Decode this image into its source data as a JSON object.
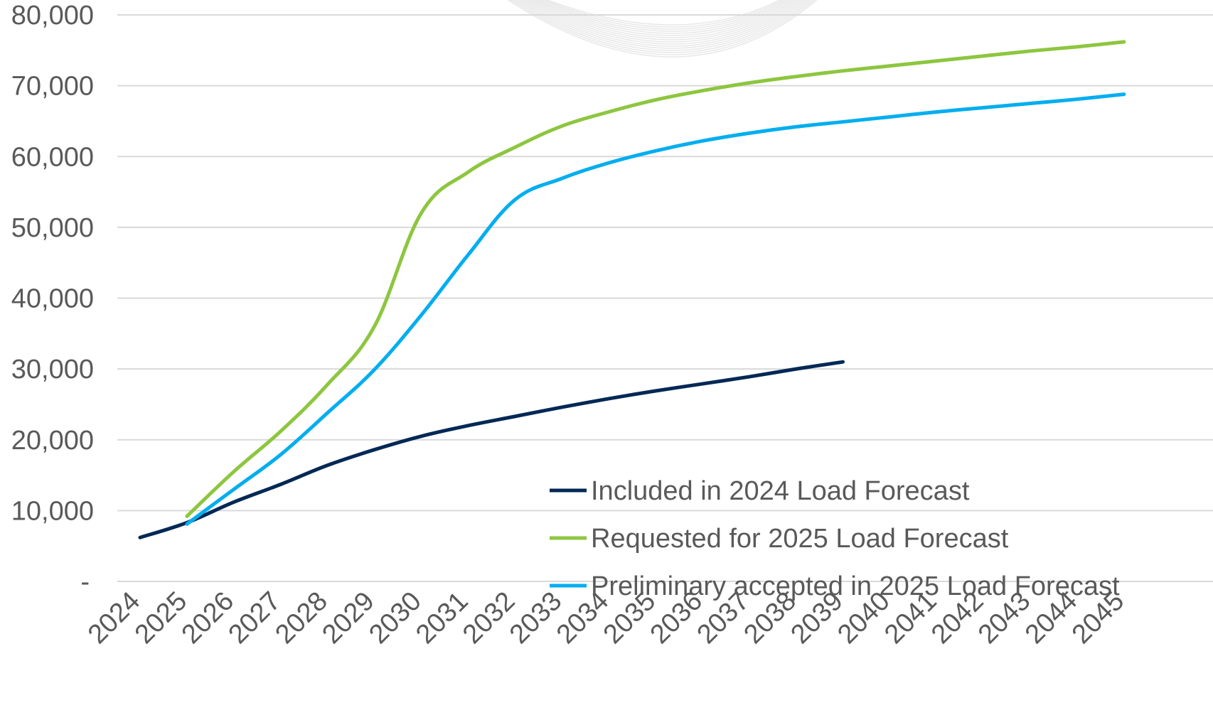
{
  "chart_data": {
    "type": "line",
    "title": "",
    "xlabel": "",
    "ylabel": "",
    "x": [
      "2024",
      "2025",
      "2026",
      "2027",
      "2028",
      "2029",
      "2030",
      "2031",
      "2032",
      "2033",
      "2034",
      "2035",
      "2036",
      "2037",
      "2038",
      "2039",
      "2040",
      "2041",
      "2042",
      "2043",
      "2044",
      "2045"
    ],
    "ylim": [
      0,
      80000
    ],
    "yticks": [
      0,
      10000,
      20000,
      30000,
      40000,
      50000,
      60000,
      70000,
      80000
    ],
    "ytick_labels": [
      "-",
      "10,000",
      "20,000",
      "30,000",
      "40,000",
      "50,000",
      "60,000",
      "70,000",
      "80,000"
    ],
    "grid": true,
    "legend_position": "bottom-right",
    "series": [
      {
        "name": "Included in 2024 Load Forecast",
        "color": "#002855",
        "values": [
          6200,
          8300,
          11200,
          13700,
          16400,
          18600,
          20500,
          22000,
          23300,
          24600,
          25800,
          26900,
          27900,
          28900,
          30000,
          31000,
          null,
          null,
          null,
          null,
          null,
          null
        ]
      },
      {
        "name": "Requested for 2025 Load Forecast",
        "color": "#8DC63F",
        "values": [
          null,
          9200,
          15500,
          21200,
          27800,
          36000,
          52000,
          57800,
          61300,
          64300,
          66300,
          68000,
          69300,
          70400,
          71300,
          72100,
          72800,
          73500,
          74200,
          74900,
          75500,
          76200
        ]
      },
      {
        "name": "Preliminary accepted in 2025 Load Forecast",
        "color": "#00AEEF",
        "values": [
          null,
          8100,
          13000,
          17900,
          23800,
          29900,
          37600,
          46100,
          53900,
          56900,
          59100,
          60800,
          62200,
          63300,
          64200,
          64900,
          65600,
          66300,
          66900,
          67500,
          68100,
          68800
        ]
      }
    ]
  }
}
